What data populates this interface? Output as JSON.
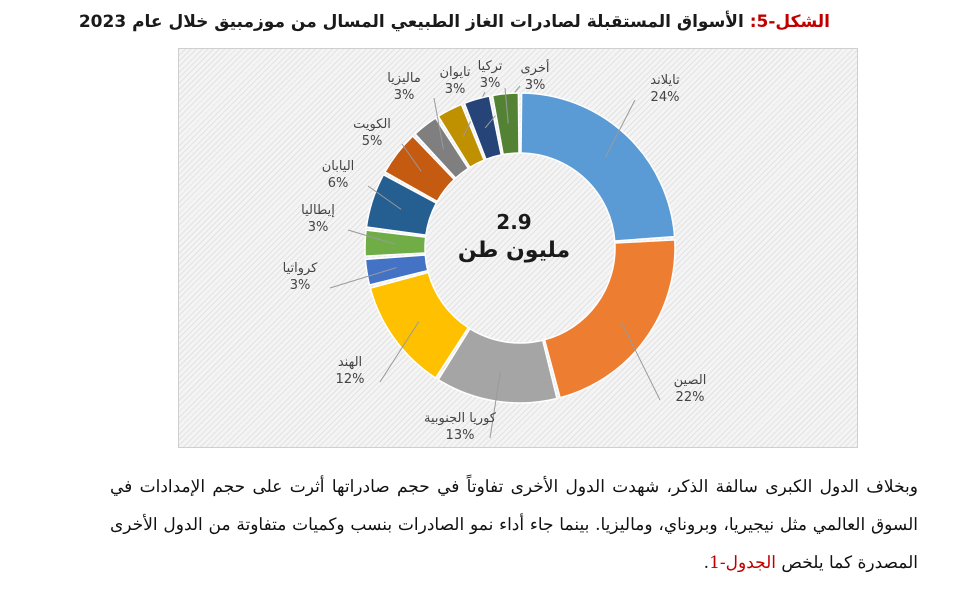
{
  "figure": {
    "caption_prefix": "الشكل-5:",
    "caption_text": "الأسواق المستقبلة لصادرات الغاز الطبيعي المسال من موزمبيق خلال عام 2023"
  },
  "chart_data": {
    "type": "pie",
    "donut": true,
    "title": "الأسواق المستقبلة لصادرات الغاز الطبيعي المسال من موزمبيق خلال عام 2023",
    "center_value": "2.9",
    "center_unit": "مليون طن",
    "value_suffix": "%",
    "slices": [
      {
        "label": "تايلاند",
        "value": 24,
        "color": "#5b9bd5"
      },
      {
        "label": "الصين",
        "value": 22,
        "color": "#ed7d31"
      },
      {
        "label": "كوريا الجنوبية",
        "value": 13,
        "color": "#a5a5a5"
      },
      {
        "label": "الهند",
        "value": 12,
        "color": "#ffc000"
      },
      {
        "label": "كرواتيا",
        "value": 3,
        "color": "#4472c4"
      },
      {
        "label": "إيطاليا",
        "value": 3,
        "color": "#70ad47"
      },
      {
        "label": "اليابان",
        "value": 6,
        "color": "#255e91"
      },
      {
        "label": "الكويت",
        "value": 5,
        "color": "#c55a11"
      },
      {
        "label": "ماليزيا",
        "value": 3,
        "color": "#7f7f7f"
      },
      {
        "label": "تايوان",
        "value": 3,
        "color": "#bf9000"
      },
      {
        "label": "تركيا",
        "value": 3,
        "color": "#264478"
      },
      {
        "label": "أخرى",
        "value": 3,
        "color": "#548235"
      }
    ]
  },
  "paragraph": {
    "body": "وبخلاف الدول الكبرى سالفة الذكر، شهدت الدول الأخرى تفاوتاً في حجم صادراتها أثرت على حجم الإمدادات في السوق العالمي مثل نيجيريا، وبروناي، وماليزيا. بينما جاء أداء نمو الصادرات بنسب وكميات متفاوتة من الدول الأخرى المصدرة كما يلخص",
    "table_ref": "الجدول-1",
    "end": "."
  }
}
